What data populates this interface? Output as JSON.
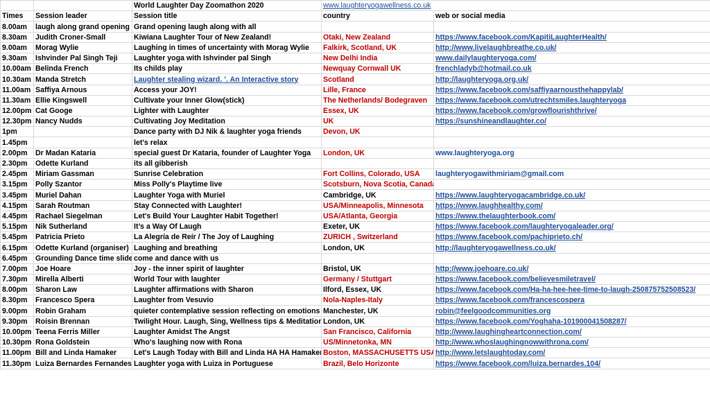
{
  "title_row": {
    "event": "World Laughter Day Zoomathon 2020",
    "site": "www.laughteryogawellness.co.uk"
  },
  "headers": [
    "Times",
    "Session leader",
    "Session title",
    "country",
    "web or social media"
  ],
  "rows": [
    {
      "time": "8.00am",
      "leader": "laugh along grand opening",
      "title": "Grand opening laugh along with all",
      "country": "",
      "web": "",
      "link": false
    },
    {
      "time": "8.30am",
      "leader": "Judith Croner-Small",
      "title": "Kiwiana Laughter Tour of New Zealand!",
      "country": "Otaki, New Zealand",
      "web": "https://www.facebook.com/KapitiLaughterHealth/",
      "link": true
    },
    {
      "time": "9.00am",
      "leader": "Morag Wylie",
      "title": "Laughing in times of uncertainty with Morag Wylie",
      "country": "Falkirk, Scotland, UK",
      "web": "http://www.livelaughbreathe.co.uk/",
      "link": true
    },
    {
      "time": "9.30am",
      "leader": "Ishvinder Pal Singh Teji",
      "title": "Laughter yoga with Ishvinder pal Singh",
      "country": "New Delhi India",
      "web": "www.dailylaughteryoga.com/",
      "link": true
    },
    {
      "time": "10.00am",
      "leader": "Belinda French",
      "title": "Its childs play",
      "country": "Newquay Cornwall UK",
      "web": "frenchladyb@hotmail.co.uk",
      "link": true
    },
    {
      "time": "10.30am",
      "leader": "Manda Stretch",
      "title": "Laughter stealing wizard. ’. An Interactive story",
      "titleLink": true,
      "country": "Scotland",
      "web": "http://laughteryoga.org.uk/",
      "link": true
    },
    {
      "time": "11.00am",
      "leader": "Saffiya Arnous",
      "title": "Access your JOY!",
      "country": "Lille, France",
      "web": "https://www.facebook.com/saffiyaarnousthehappylab/",
      "link": true
    },
    {
      "time": "11.30am",
      "leader": "Ellie Kingswell",
      "title": "Cultivate your Inner Glow(stick)",
      "country": "The Netherlands/ Bodegraven",
      "web": "https://www.facebook.com/utrechtsmiles.laughteryoga",
      "link": true
    },
    {
      "time": "12.00pm",
      "leader": "Cat Googe",
      "title": "Lighter with Laughter",
      "country": "Essex, UK",
      "web": "https://www.facebook.com/growflourishthrive/",
      "link": true
    },
    {
      "time": "12.30pm",
      "leader": "Nancy Nudds",
      "title": "Cultivating Joy Meditation",
      "country": "UK",
      "web": "https://sunshineandlaughter.co/",
      "link": true
    },
    {
      "time": "1pm",
      "leader": "",
      "title": "Dance party with DJ Nik & laughter yoga friends",
      "country": "Devon, UK",
      "web": "",
      "link": false
    },
    {
      "time": "1.45pm",
      "leader": "",
      "title": "let's relax",
      "country": "",
      "web": "",
      "link": false
    },
    {
      "time": "2.00pm",
      "leader": "Dr Madan Kataria",
      "title": "special guest Dr Kataria, founder of Laughter Yoga",
      "country": "London, UK",
      "web": "www.laughteryoga.org",
      "link": false
    },
    {
      "time": "2.30pm",
      "leader": "Odette Kurland",
      "title": "its all gibberish",
      "country": "",
      "web": "",
      "link": false
    },
    {
      "time": "2.45pm",
      "leader": "Miriam Gassman",
      "title": "Sunrise Celebration",
      "country": "Fort Collins, Colorado, USA",
      "web": "laughteryogawithmiriam@gmail.com",
      "link": false
    },
    {
      "time": "3.15pm",
      "leader": "Polly Szantor",
      "title": "Miss Polly's Playtime live",
      "country": "Scotsburn, Nova Scotia, Canada",
      "web": "",
      "link": false
    },
    {
      "time": "3.45pm",
      "leader": "Muriel Dahan",
      "title": "Laughter Yoga with Muriel",
      "country": "Cambridge, UK",
      "countryBlack": true,
      "web": "https://www.laughteryogacambridge.co.uk/",
      "link": true
    },
    {
      "time": "4.15pm",
      "leader": "Sarah Routman",
      "title": "Stay Connected with Laughter!",
      "country": "USA/Minneapolis, Minnesota",
      "web": "https://www.laughhealthy.com/",
      "link": true
    },
    {
      "time": "4.45pm",
      "leader": "Rachael Siegelman",
      "title": "Let's Build Your Laughter Habit Together!",
      "country": "USA/Atlanta, Georgia",
      "web": "https://www.thelaughterbook.com/",
      "link": true
    },
    {
      "time": "5.15pm",
      "leader": "Nik Sutherland",
      "title": "It’s a Way Of Laugh",
      "country": "Exeter, UK",
      "countryBlack": true,
      "web": "https://www.facebook.com/laughteryogaleader.org/",
      "link": true
    },
    {
      "time": "5.45pm",
      "leader": "Patricia Prieto",
      "title": " La Alegría de Reír / The Joy of Laughing",
      "country": "ZURICH , Switzerland",
      "web": "https://www.facebook.com/pachiprieto.ch/",
      "link": true
    },
    {
      "time": "6.15pm",
      "leader": "Odette Kurland (organiser)",
      "title": "Laughing and breathing",
      "country": "London, UK",
      "countryBlack": true,
      "web": "http://laughteryogawellness.co.uk/",
      "link": true
    },
    {
      "time": "6.45pm",
      "leader": "Grounding Dance time slide",
      "title": "come and dance with us",
      "country": "",
      "web": "",
      "link": false
    },
    {
      "time": "7.00pm",
      "leader": "Joe Hoare",
      "title": "Joy - the inner spirit of laughter",
      "country": "Bristol, UK",
      "countryBlack": true,
      "web": "http://www.joehoare.co.uk/",
      "link": true
    },
    {
      "time": "7.30pm",
      "leader": "Mirella Alberti",
      "title": "World Tour with laughter",
      "country": "Germany / Stuttgart",
      "web": "https://www.facebook.com/believesmiletravel/",
      "link": true
    },
    {
      "time": "8.00pm",
      "leader": "Sharon Law",
      "title": "Laughter affirmations with Sharon",
      "country": "Ilford, Essex, UK",
      "countryBlack": true,
      "web": "https://www.facebook.com/Ha-ha-hee-hee-time-to-laugh-250875752508523/",
      "link": true
    },
    {
      "time": "8.30pm",
      "leader": "Francesco Spera",
      "title": "Laughter from Vesuvio",
      "country": "Nola-Naples-Italy",
      "web": "https://www.facebook.com/francescospera",
      "link": true
    },
    {
      "time": "9.00pm",
      "leader": "Robin Graham",
      "title": "quieter contemplative session reflecting on emotions",
      "country": "Manchester, UK",
      "countryBlack": true,
      "web": "robin@feelgoodcommunities.org",
      "link": true
    },
    {
      "time": "9.30pm",
      "leader": "Roisin Brennan",
      "title": "Twilight Hour. Laugh, Sing, Wellness tips & Meditation",
      "country": "London, UK",
      "countryBlack": true,
      "web": "https://www.facebook.com/Yoghaha-101900041508287/",
      "link": true
    },
    {
      "time": "10.00pm",
      "leader": "Teena Ferris Miller",
      "title": "Laughter Amidst The Angst",
      "country": "San Francisco, California",
      "web": "http://www.laughingheartconnection.com/",
      "link": true
    },
    {
      "time": "10.30pm",
      "leader": "Rona Goldstein",
      "title": "Who's laughing now with Rona",
      "country": "US/Minnetonka, MN",
      "web": "http://www.whoslaughingnowwithrona.com/",
      "link": true
    },
    {
      "time": "11.00pm",
      "leader": "Bill and Linda Hamaker",
      "title": "Let's Laugh Today with Bill and Linda HA HA Hamaker",
      "country": "Boston, MASSACHUSETTS   USA",
      "web": "http://www.letslaughtoday.com/",
      "link": true
    },
    {
      "time": "11.30pm",
      "leader": "Luiza Bernardes Fernandes",
      "title": "Laughter yoga with Luiza in Portuguese",
      "country": "Brazil, Belo Horizonte",
      "web": "https://www.facebook.com/luiza.bernardes.104/",
      "link": true
    }
  ]
}
